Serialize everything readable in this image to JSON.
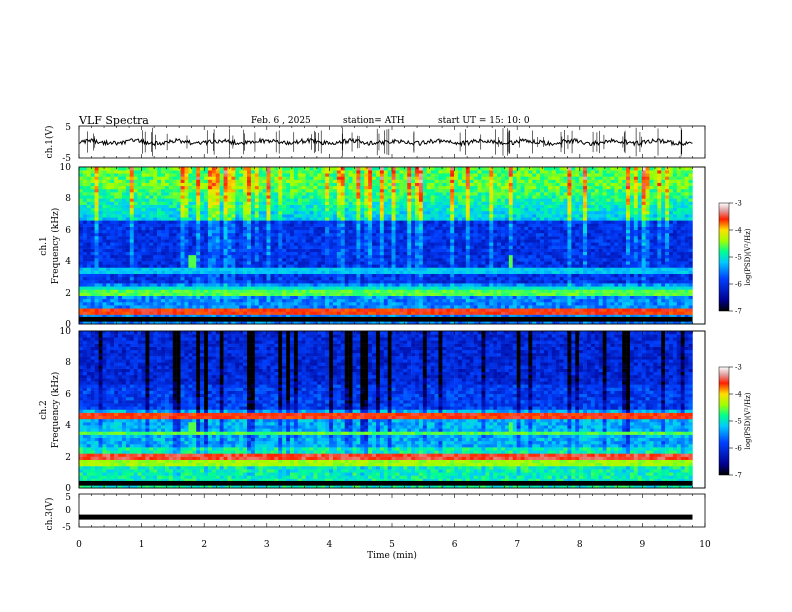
{
  "header": {
    "title": "VLF  Spectra",
    "date": "Feb. 6  , 2025",
    "station": "station= ATH",
    "start": "start  UT  =    15: 10: 0"
  },
  "chart_data": [
    {
      "type": "line",
      "panel": "ch1-waveform",
      "ylabel": "ch.1(V)",
      "ylim": [
        -5,
        5
      ],
      "yticks": [
        "5",
        "-5"
      ],
      "xlim": [
        0,
        10
      ],
      "x_extent": [
        0,
        9.8
      ],
      "trace": {
        "baseline": 0,
        "color": "#000000"
      }
    },
    {
      "type": "heatmap",
      "panel": "ch1-spectrogram",
      "ylabel": "ch.1\nFrequency  (kHz)",
      "ylim": [
        0,
        10
      ],
      "yticks": [
        "0",
        "2",
        "4",
        "6",
        "8",
        "10"
      ],
      "xlim": [
        0,
        10
      ],
      "x_extent": [
        0,
        9.8
      ],
      "colorbar": {
        "label": "log(PSD)(V²/Hz)",
        "range": [
          -7,
          -3
        ],
        "ticks": [
          "-3",
          "-4",
          "-5",
          "-6",
          "-7"
        ]
      },
      "features": [
        {
          "kind": "band",
          "freq_khz": 0.8,
          "level": -3.6
        },
        {
          "kind": "band",
          "freq_khz": 2.0,
          "level": -4.6
        },
        {
          "kind": "band",
          "freq_khz": 2.3,
          "level": -5.0
        },
        {
          "kind": "band",
          "freq_khz": 3.4,
          "level": -5.2
        },
        {
          "kind": "burst",
          "time_min": 1.8,
          "freq_khz": 4.0,
          "level": -4.6
        },
        {
          "kind": "burst",
          "time_min": 6.9,
          "freq_khz": 4.0,
          "level": -4.6
        }
      ]
    },
    {
      "type": "heatmap",
      "panel": "ch2-spectrogram",
      "ylabel": "ch.2\nFrequency  (kHz)",
      "ylim": [
        0,
        10
      ],
      "yticks": [
        "0",
        "2",
        "4",
        "6",
        "8",
        "10"
      ],
      "xlim": [
        0,
        10
      ],
      "x_extent": [
        0,
        9.8
      ],
      "colorbar": {
        "label": "log(PSD)(V²/Hz)",
        "range": [
          -7,
          -3
        ],
        "ticks": [
          "-3",
          "-4",
          "-5",
          "-6",
          "-7"
        ]
      },
      "features": [
        {
          "kind": "band",
          "freq_khz": 4.6,
          "level": -3.6
        },
        {
          "kind": "band",
          "freq_khz": 3.5,
          "level": -4.6
        },
        {
          "kind": "band",
          "freq_khz": 2.0,
          "level": -3.5
        },
        {
          "kind": "band",
          "freq_khz": 1.6,
          "level": -4.4
        },
        {
          "kind": "burst",
          "time_min": 1.8,
          "freq_khz": 3.8,
          "level": -4.6
        },
        {
          "kind": "burst",
          "time_min": 6.9,
          "freq_khz": 3.8,
          "level": -4.6
        }
      ]
    },
    {
      "type": "line",
      "panel": "ch3-waveform",
      "ylabel": "ch.3(V)",
      "ylim": [
        -5,
        5
      ],
      "yticks": [
        "5",
        "0",
        "-5"
      ],
      "xlim": [
        0,
        10
      ],
      "x_extent": [
        0,
        9.8
      ],
      "trace": {
        "baseline": -2,
        "color": "#000000"
      },
      "xlabel": "Time  (min)",
      "xticks": [
        "0",
        "1",
        "2",
        "3",
        "4",
        "5",
        "6",
        "7",
        "8",
        "9",
        "10"
      ]
    }
  ]
}
